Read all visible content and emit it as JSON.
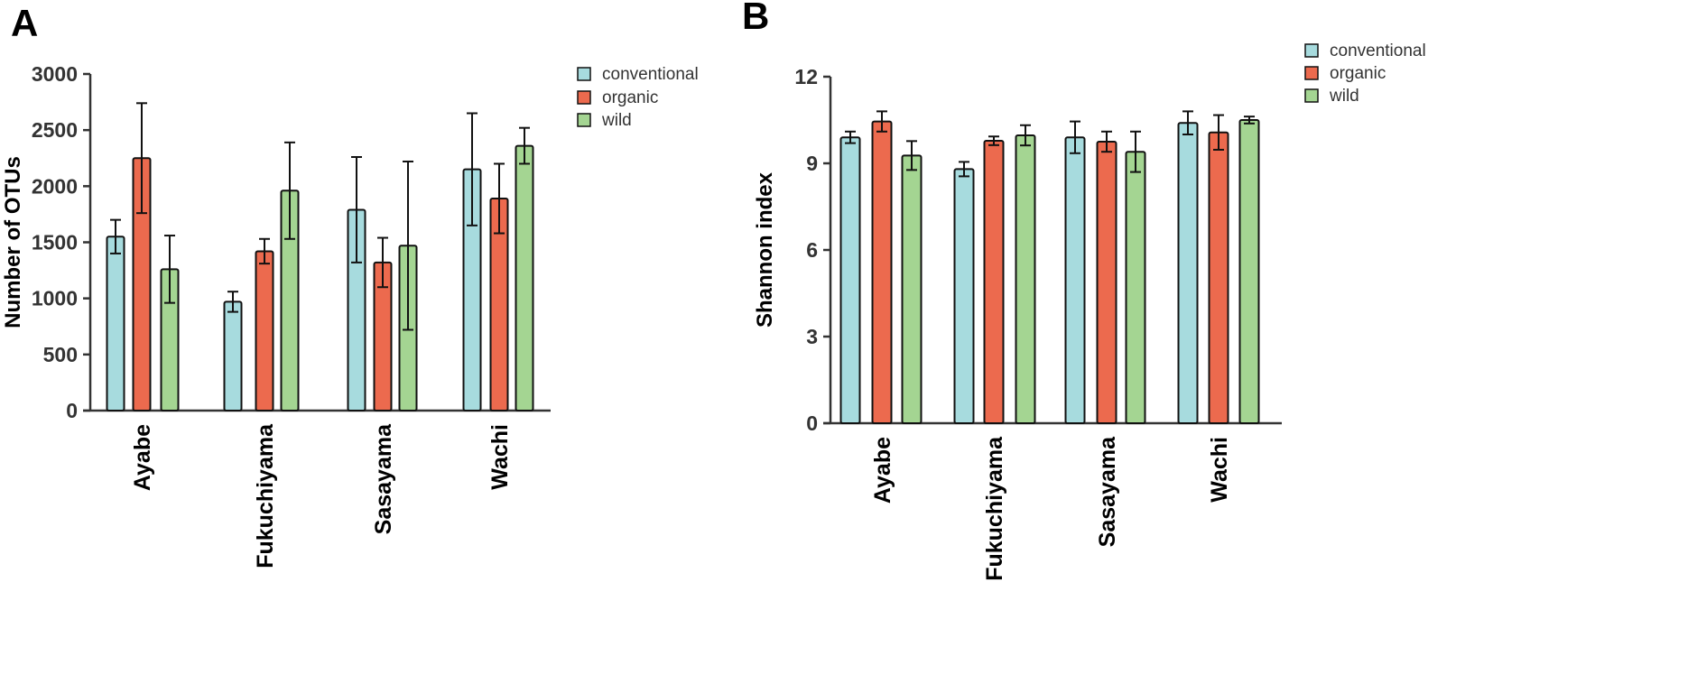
{
  "colors": {
    "conventional": "#a7dbde",
    "organic": "#ec6a4e",
    "wild": "#a4d592",
    "outline": "#111111",
    "axis": "#333333"
  },
  "chart_data": [
    {
      "panel": "A",
      "type": "bar",
      "ylabel": "Number of OTUs",
      "xlabel": "",
      "ylim": [
        0,
        3000
      ],
      "yticks": [
        0,
        500,
        1000,
        1500,
        2000,
        2500,
        3000
      ],
      "categories": [
        "Ayabe",
        "Fukuchiyama",
        "Sasayama",
        "Wachi"
      ],
      "legend": {
        "placement": "top-right",
        "entries": [
          "conventional",
          "organic",
          "wild"
        ]
      },
      "grid": false,
      "series": [
        {
          "name": "conventional",
          "values": [
            1550,
            970,
            1790,
            2150
          ],
          "error": [
            150,
            90,
            470,
            500
          ]
        },
        {
          "name": "organic",
          "values": [
            2250,
            1420,
            1320,
            1890
          ],
          "error": [
            490,
            110,
            220,
            310
          ]
        },
        {
          "name": "wild",
          "values": [
            1260,
            1960,
            1470,
            2360
          ],
          "error": [
            300,
            430,
            750,
            160
          ]
        }
      ]
    },
    {
      "panel": "B",
      "type": "bar",
      "ylabel": "Shannon index",
      "xlabel": "",
      "ylim": [
        0,
        12
      ],
      "yticks": [
        0,
        3,
        6,
        9,
        12
      ],
      "categories": [
        "Ayabe",
        "Fukuchiyama",
        "Sasayama",
        "Wachi"
      ],
      "legend": {
        "placement": "top-right",
        "entries": [
          "conventional",
          "organic",
          "wild"
        ]
      },
      "grid": false,
      "series": [
        {
          "name": "conventional",
          "values": [
            9.9,
            8.8,
            9.9,
            10.4
          ],
          "error": [
            0.2,
            0.25,
            0.55,
            0.4
          ]
        },
        {
          "name": "organic",
          "values": [
            10.45,
            9.78,
            9.75,
            10.07
          ],
          "error": [
            0.35,
            0.15,
            0.35,
            0.6
          ]
        },
        {
          "name": "wild",
          "values": [
            9.27,
            9.97,
            9.4,
            10.5
          ],
          "error": [
            0.5,
            0.35,
            0.7,
            0.12
          ]
        }
      ]
    }
  ]
}
